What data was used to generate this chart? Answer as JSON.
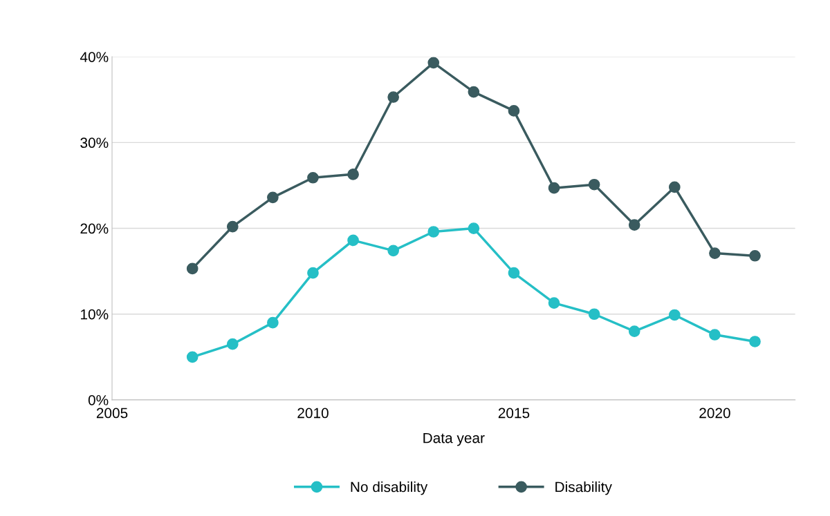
{
  "chart_data": {
    "type": "line",
    "xlabel": "Data year",
    "x": [
      2007,
      2008,
      2009,
      2010,
      2011,
      2012,
      2013,
      2014,
      2015,
      2016,
      2017,
      2018,
      2019,
      2020,
      2021
    ],
    "series": [
      {
        "name": "No disability",
        "color": "#25bfc6",
        "values": [
          5.0,
          6.5,
          9.0,
          14.8,
          18.6,
          17.4,
          19.6,
          20.0,
          14.8,
          11.3,
          10.0,
          8.0,
          9.9,
          7.6,
          6.8
        ]
      },
      {
        "name": "Disability",
        "color": "#3a5b5f",
        "values": [
          15.3,
          20.2,
          23.6,
          25.9,
          26.3,
          35.3,
          39.3,
          35.9,
          33.7,
          24.7,
          25.1,
          20.4,
          24.8,
          17.1,
          16.8
        ]
      }
    ],
    "xlim": [
      2005,
      2022
    ],
    "xticks": [
      2005,
      2010,
      2015,
      2020
    ],
    "ylim": [
      0,
      40
    ],
    "yticks": [
      {
        "value": 0,
        "label": "0%"
      },
      {
        "value": 10,
        "label": "10%"
      },
      {
        "value": 20,
        "label": "20%"
      },
      {
        "value": 30,
        "label": "30%"
      },
      {
        "value": 40,
        "label": "40%"
      }
    ],
    "grid": "y",
    "legend": "bottom",
    "marker": "circle",
    "line_style": "solid"
  }
}
